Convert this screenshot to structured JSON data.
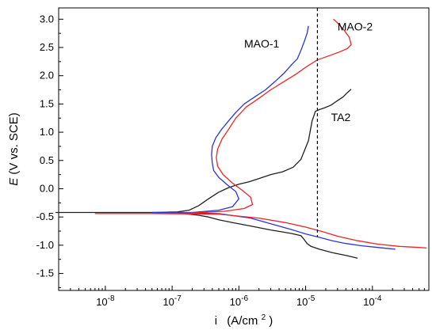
{
  "chart_data": {
    "type": "line",
    "xscale": "log",
    "xlim": [
      2e-09,
      0.0007
    ],
    "ylim": [
      -1.8,
      3.2
    ],
    "xlabel_main": "i",
    "xlabel_units": "(A/cm",
    "xlabel_sup": "2",
    "xlabel_close": ")",
    "ylabel_italic": "E",
    "ylabel_rest": " (V vs. SCE)",
    "x_ticks": [
      {
        "value": 1e-08,
        "base": "10",
        "exp": "-8"
      },
      {
        "value": 1e-07,
        "base": "10",
        "exp": "-7"
      },
      {
        "value": 1e-06,
        "base": "10",
        "exp": "-6"
      },
      {
        "value": 1e-05,
        "base": "10",
        "exp": "-5"
      },
      {
        "value": 0.0001,
        "base": "10",
        "exp": "-4"
      }
    ],
    "y_ticks": [
      {
        "value": -1.5,
        "label": "-1.5"
      },
      {
        "value": -1.0,
        "label": "-1.0"
      },
      {
        "value": -0.5,
        "label": "-0.5"
      },
      {
        "value": 0.0,
        "label": "0.0"
      },
      {
        "value": 0.5,
        "label": "0.5"
      },
      {
        "value": 1.0,
        "label": "1.0"
      },
      {
        "value": 1.5,
        "label": "1.5"
      },
      {
        "value": 2.0,
        "label": "2.0"
      },
      {
        "value": 2.5,
        "label": "2.5"
      },
      {
        "value": 3.0,
        "label": "3.0"
      }
    ],
    "series": [
      {
        "color": "#1f1f1f",
        "x": [
          1.8e-09,
          1e-08,
          5e-08,
          1.5e-07,
          2.5e-07,
          3.5e-07,
          5e-07,
          8e-07,
          1.5e-06,
          3e-06,
          6e-06,
          8.5e-06,
          9.5e-06,
          1.05e-05,
          1.2e-05,
          1.6e-05,
          2.5e-05,
          4e-05,
          6e-05
        ],
        "y": [
          -0.42,
          -0.42,
          -0.42,
          -0.44,
          -0.47,
          -0.5,
          -0.55,
          -0.6,
          -0.66,
          -0.73,
          -0.79,
          -0.83,
          -0.9,
          -0.97,
          -1.02,
          -1.07,
          -1.13,
          -1.18,
          -1.23
        ]
      },
      {
        "color": "#1f1f1f",
        "x": [
          5e-08,
          1.2e-07,
          1.8e-07,
          2.5e-07,
          3.5e-07,
          5e-07,
          7e-07,
          1e-06,
          1.4e-06,
          2e-06,
          3e-06,
          4.5e-06,
          6.5e-06,
          8.5e-06,
          1.1e-05,
          1.25e-05,
          1.4e-05,
          1.6e-05,
          1.9e-05,
          2.4e-05,
          3e-05,
          3.6e-05,
          4.2e-05,
          4.8e-05
        ],
        "y": [
          -0.42,
          -0.41,
          -0.38,
          -0.3,
          -0.18,
          -0.06,
          0.02,
          0.08,
          0.12,
          0.18,
          0.25,
          0.3,
          0.38,
          0.52,
          0.85,
          1.2,
          1.37,
          1.4,
          1.43,
          1.48,
          1.56,
          1.62,
          1.7,
          1.76
        ]
      },
      {
        "color": "#2a35d8",
        "x": [
          5e-08,
          2e-07,
          5e-07,
          8e-07,
          1e-06,
          9e-07,
          7e-07,
          5e-07,
          4.2e-07,
          4e-07,
          3.9e-07,
          4e-07,
          4.5e-07,
          5.5e-07,
          7e-07,
          9e-07,
          1.2e-06,
          1.7e-06,
          2.5e-06,
          3.5e-06,
          4.8e-06,
          6.2e-06,
          7.5e-06,
          8.5e-06,
          9.5e-06,
          1.05e-05,
          1.1e-05
        ],
        "y": [
          -0.42,
          -0.42,
          -0.38,
          -0.32,
          -0.18,
          -0.05,
          0.05,
          0.2,
          0.32,
          0.45,
          0.6,
          0.75,
          0.9,
          1.05,
          1.2,
          1.35,
          1.5,
          1.62,
          1.75,
          1.9,
          2.05,
          2.2,
          2.3,
          2.45,
          2.6,
          2.75,
          2.88
        ]
      },
      {
        "color": "#2a35d8",
        "x": [
          5e-08,
          5e-07,
          1.5e-06,
          3e-06,
          6e-06,
          1e-05,
          1.6e-05,
          2.5e-05,
          4e-05,
          7e-05,
          0.00012,
          0.00018,
          0.00022
        ],
        "y": [
          -0.42,
          -0.44,
          -0.52,
          -0.62,
          -0.72,
          -0.8,
          -0.86,
          -0.92,
          -0.97,
          -1.01,
          -1.04,
          -1.06,
          -1.07
        ]
      },
      {
        "color": "#e8262c",
        "x": [
          7e-09,
          5e-08,
          2e-07,
          6e-07,
          1.2e-06,
          1.6e-06,
          1.5e-06,
          1.1e-06,
          8e-07,
          5.8e-07,
          4.8e-07,
          4.6e-07,
          4.8e-07,
          5.6e-07,
          7e-07,
          9e-07,
          1.3e-06,
          2e-06,
          3e-06,
          4.5e-06,
          7e-06,
          1e-05,
          1.5e-05,
          2.2e-05,
          3.2e-05,
          4.2e-05,
          4.8e-05,
          4.5e-05,
          3.8e-05,
          3.2e-05,
          2.8e-05,
          2.6e-05
        ],
        "y": [
          -0.44,
          -0.44,
          -0.43,
          -0.4,
          -0.35,
          -0.28,
          -0.15,
          -0.02,
          0.1,
          0.25,
          0.4,
          0.55,
          0.7,
          0.88,
          1.05,
          1.25,
          1.45,
          1.6,
          1.75,
          1.88,
          2.02,
          2.15,
          2.28,
          2.35,
          2.42,
          2.48,
          2.55,
          2.68,
          2.8,
          2.9,
          2.97,
          3.0
        ]
      },
      {
        "color": "#e8262c",
        "x": [
          5e-08,
          5e-07,
          2e-06,
          5e-06,
          1e-05,
          1.8e-05,
          3e-05,
          6e-05,
          0.00012,
          0.00025,
          0.0005,
          0.00065
        ],
        "y": [
          -0.44,
          -0.45,
          -0.52,
          -0.6,
          -0.68,
          -0.76,
          -0.84,
          -0.92,
          -0.98,
          -1.02,
          -1.04,
          -1.05
        ]
      }
    ],
    "annotations": [
      {
        "text": "MAO-1",
        "x": 1.2e-06,
        "y": 2.5
      },
      {
        "text": "MAO-2",
        "x": 3e-05,
        "y": 2.8
      },
      {
        "text": "TA2",
        "x": 2.4e-05,
        "y": 1.2
      }
    ],
    "vline": {
      "x": 1.5e-05,
      "y0": -0.85,
      "y1": 3.2
    }
  }
}
